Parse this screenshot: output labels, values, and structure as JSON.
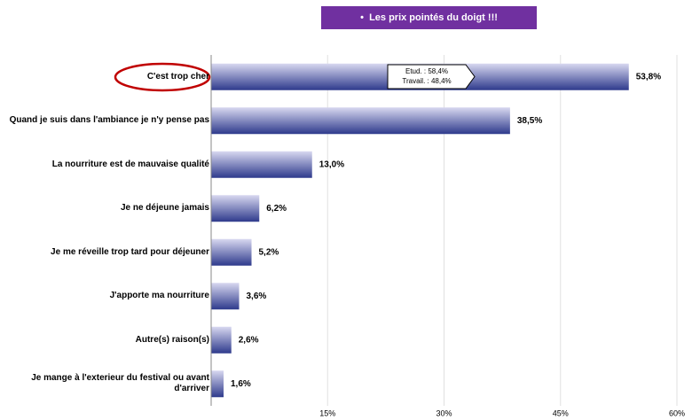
{
  "chart_data": {
    "type": "barh",
    "title": "Les prix pointés du doigt !!!",
    "categories": [
      "C'est trop cher",
      "Quand je suis dans l'ambiance je n'y pense pas",
      "La nourriture est de mauvaise qualité",
      "Je ne déjeune jamais",
      "Je me réveille trop tard pour déjeuner",
      "J'apporte ma nourriture",
      "Autre(s) raison(s)",
      "Je mange à l'exterieur du festival ou avant d'arriver"
    ],
    "values": [
      53.8,
      38.5,
      13.0,
      6.2,
      5.2,
      3.6,
      2.6,
      1.6
    ],
    "value_labels": [
      "53,8%",
      "38,5%",
      "13,0%",
      "6,2%",
      "5,2%",
      "3,6%",
      "2,6%",
      "1,6%"
    ],
    "color": "#2e3a8c",
    "xlim": [
      0,
      60
    ],
    "xticks": [
      {
        "value": 15,
        "label": "15%"
      },
      {
        "value": 30,
        "label": "30%"
      },
      {
        "value": 45,
        "label": "45%"
      },
      {
        "value": 60,
        "label": "60%"
      }
    ],
    "grid": true,
    "annotations": [
      "Etud. : 58,4%",
      "Travail. : 48,4%"
    ]
  }
}
